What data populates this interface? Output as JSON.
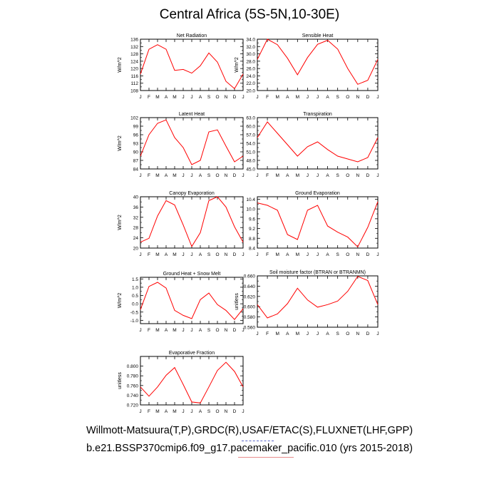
{
  "title": "Central Africa (5S-5N,10-30E)",
  "footer": {
    "line1": "Willmott-Matsuura(T,P),GRDC(R),USAF/ETAC(S),FLUXNET(LHF,GPP)",
    "line2": "b.e21.BSSP370cmip6.f09_g17.pacemaker_pacific.010 (yrs 2015-2018)"
  },
  "colors": {
    "series": "#ff0000",
    "axis": "#000000"
  },
  "chart_data": [
    {
      "type": "line",
      "title": "Net Radiation",
      "ylabel": "W/m^2",
      "categories": [
        "J",
        "F",
        "M",
        "A",
        "M",
        "J",
        "J",
        "A",
        "S",
        "O",
        "N",
        "D",
        "J"
      ],
      "ylim": [
        108,
        136
      ],
      "yticks": [
        "108",
        "112",
        "116",
        "120",
        "124",
        "128",
        "132",
        "136"
      ],
      "values": [
        117,
        130.5,
        133,
        130.5,
        119,
        119.5,
        117.5,
        121.5,
        128.5,
        123.5,
        113,
        109,
        117
      ]
    },
    {
      "type": "line",
      "title": "Sensible Heat",
      "ylabel": "W/m^2",
      "categories": [
        "J",
        "F",
        "M",
        "A",
        "M",
        "J",
        "J",
        "A",
        "S",
        "O",
        "N",
        "D",
        "J"
      ],
      "ylim": [
        20,
        34
      ],
      "yticks": [
        "20.0",
        "22.0",
        "24.0",
        "26.0",
        "28.0",
        "30.0",
        "32.0",
        "34.0"
      ],
      "values": [
        28.5,
        34,
        32.5,
        28.8,
        24.3,
        29,
        32.6,
        33.7,
        31.3,
        26,
        21.7,
        22.8,
        28.5
      ]
    },
    {
      "type": "line",
      "title": "Latent Heat",
      "ylabel": "W/m^2",
      "categories": [
        "J",
        "F",
        "M",
        "A",
        "M",
        "J",
        "J",
        "A",
        "S",
        "O",
        "N",
        "D",
        "J"
      ],
      "ylim": [
        84,
        102
      ],
      "yticks": [
        "84",
        "87",
        "90",
        "93",
        "96",
        "99",
        "102"
      ],
      "values": [
        88.5,
        96,
        100,
        101.2,
        95,
        91.5,
        85.5,
        87,
        97,
        97.7,
        92,
        86.5,
        88.5
      ]
    },
    {
      "type": "line",
      "title": "Transpiration",
      "ylabel": "",
      "categories": [
        "J",
        "F",
        "M",
        "A",
        "M",
        "J",
        "J",
        "A",
        "S",
        "O",
        "N",
        "D",
        "J"
      ],
      "ylim": [
        45,
        63
      ],
      "yticks": [
        "45.0",
        "48.0",
        "51.0",
        "54.0",
        "57.0",
        "60.0",
        "63.0"
      ],
      "values": [
        56,
        61.5,
        57.5,
        53.5,
        49.5,
        52.8,
        54.5,
        51.8,
        49.5,
        48.5,
        47.5,
        49,
        56
      ]
    },
    {
      "type": "line",
      "title": "Canopy Evaporation",
      "ylabel": "W/m^2",
      "categories": [
        "J",
        "F",
        "M",
        "A",
        "M",
        "J",
        "J",
        "A",
        "S",
        "O",
        "N",
        "D",
        "J"
      ],
      "ylim": [
        20,
        40
      ],
      "yticks": [
        "20",
        "24",
        "28",
        "32",
        "36",
        "40"
      ],
      "values": [
        22.3,
        23.8,
        32.5,
        38.5,
        36.8,
        29,
        20.6,
        26,
        38.5,
        40,
        36,
        28.3,
        22.3
      ]
    },
    {
      "type": "line",
      "title": "Ground Evaporation",
      "ylabel": "",
      "categories": [
        "J",
        "F",
        "M",
        "A",
        "M",
        "J",
        "J",
        "A",
        "S",
        "O",
        "N",
        "D",
        "J"
      ],
      "ylim": [
        8.4,
        10.5
      ],
      "yticks": [
        "8.4",
        "8.8",
        "9.2",
        "9.6",
        "10.0",
        "10.4"
      ],
      "values": [
        10.25,
        10.15,
        9.95,
        8.95,
        8.75,
        9.95,
        10.15,
        9.3,
        9.05,
        8.85,
        8.45,
        9.25,
        10.3
      ]
    },
    {
      "type": "line",
      "title": "Ground Heat + Snow Melt",
      "ylabel": "W/m^2",
      "categories": [
        "J",
        "F",
        "M",
        "A",
        "M",
        "J",
        "J",
        "A",
        "S",
        "O",
        "N",
        "D",
        "J"
      ],
      "ylim": [
        -1.2,
        1.6
      ],
      "yticks": [
        "-1.0",
        "-0.5",
        "0.0",
        "0.5",
        "1.0",
        "1.5"
      ],
      "values": [
        -0.35,
        1.05,
        1.3,
        0.95,
        -0.4,
        -0.7,
        -0.9,
        0.25,
        0.65,
        -0.05,
        -0.4,
        -0.95,
        -0.3
      ]
    },
    {
      "type": "line",
      "title": "Soil moisture factor (BTRAN or BTRANMN)",
      "ylabel": "unitless",
      "categories": [
        "J",
        "F",
        "M",
        "A",
        "M",
        "J",
        "J",
        "A",
        "S",
        "O",
        "N",
        "D",
        "J"
      ],
      "ylim": [
        0.56,
        0.66
      ],
      "yticks": [
        "0.560",
        "0.580",
        "0.600",
        "0.620",
        "0.640",
        "0.660"
      ],
      "values": [
        0.604,
        0.578,
        0.586,
        0.606,
        0.636,
        0.613,
        0.599,
        0.604,
        0.611,
        0.63,
        0.659,
        0.651,
        0.604
      ]
    },
    {
      "type": "line",
      "title": "Evaporative Fraction",
      "ylabel": "unitless",
      "categories": [
        "J",
        "F",
        "M",
        "A",
        "M",
        "J",
        "J",
        "A",
        "S",
        "O",
        "N",
        "D",
        "J"
      ],
      "ylim": [
        0.72,
        0.82
      ],
      "yticks": [
        "0.720",
        "0.740",
        "0.760",
        "0.780",
        "0.800"
      ],
      "values": [
        0.757,
        0.738,
        0.757,
        0.781,
        0.797,
        0.762,
        0.726,
        0.724,
        0.757,
        0.791,
        0.808,
        0.789,
        0.757
      ]
    }
  ]
}
